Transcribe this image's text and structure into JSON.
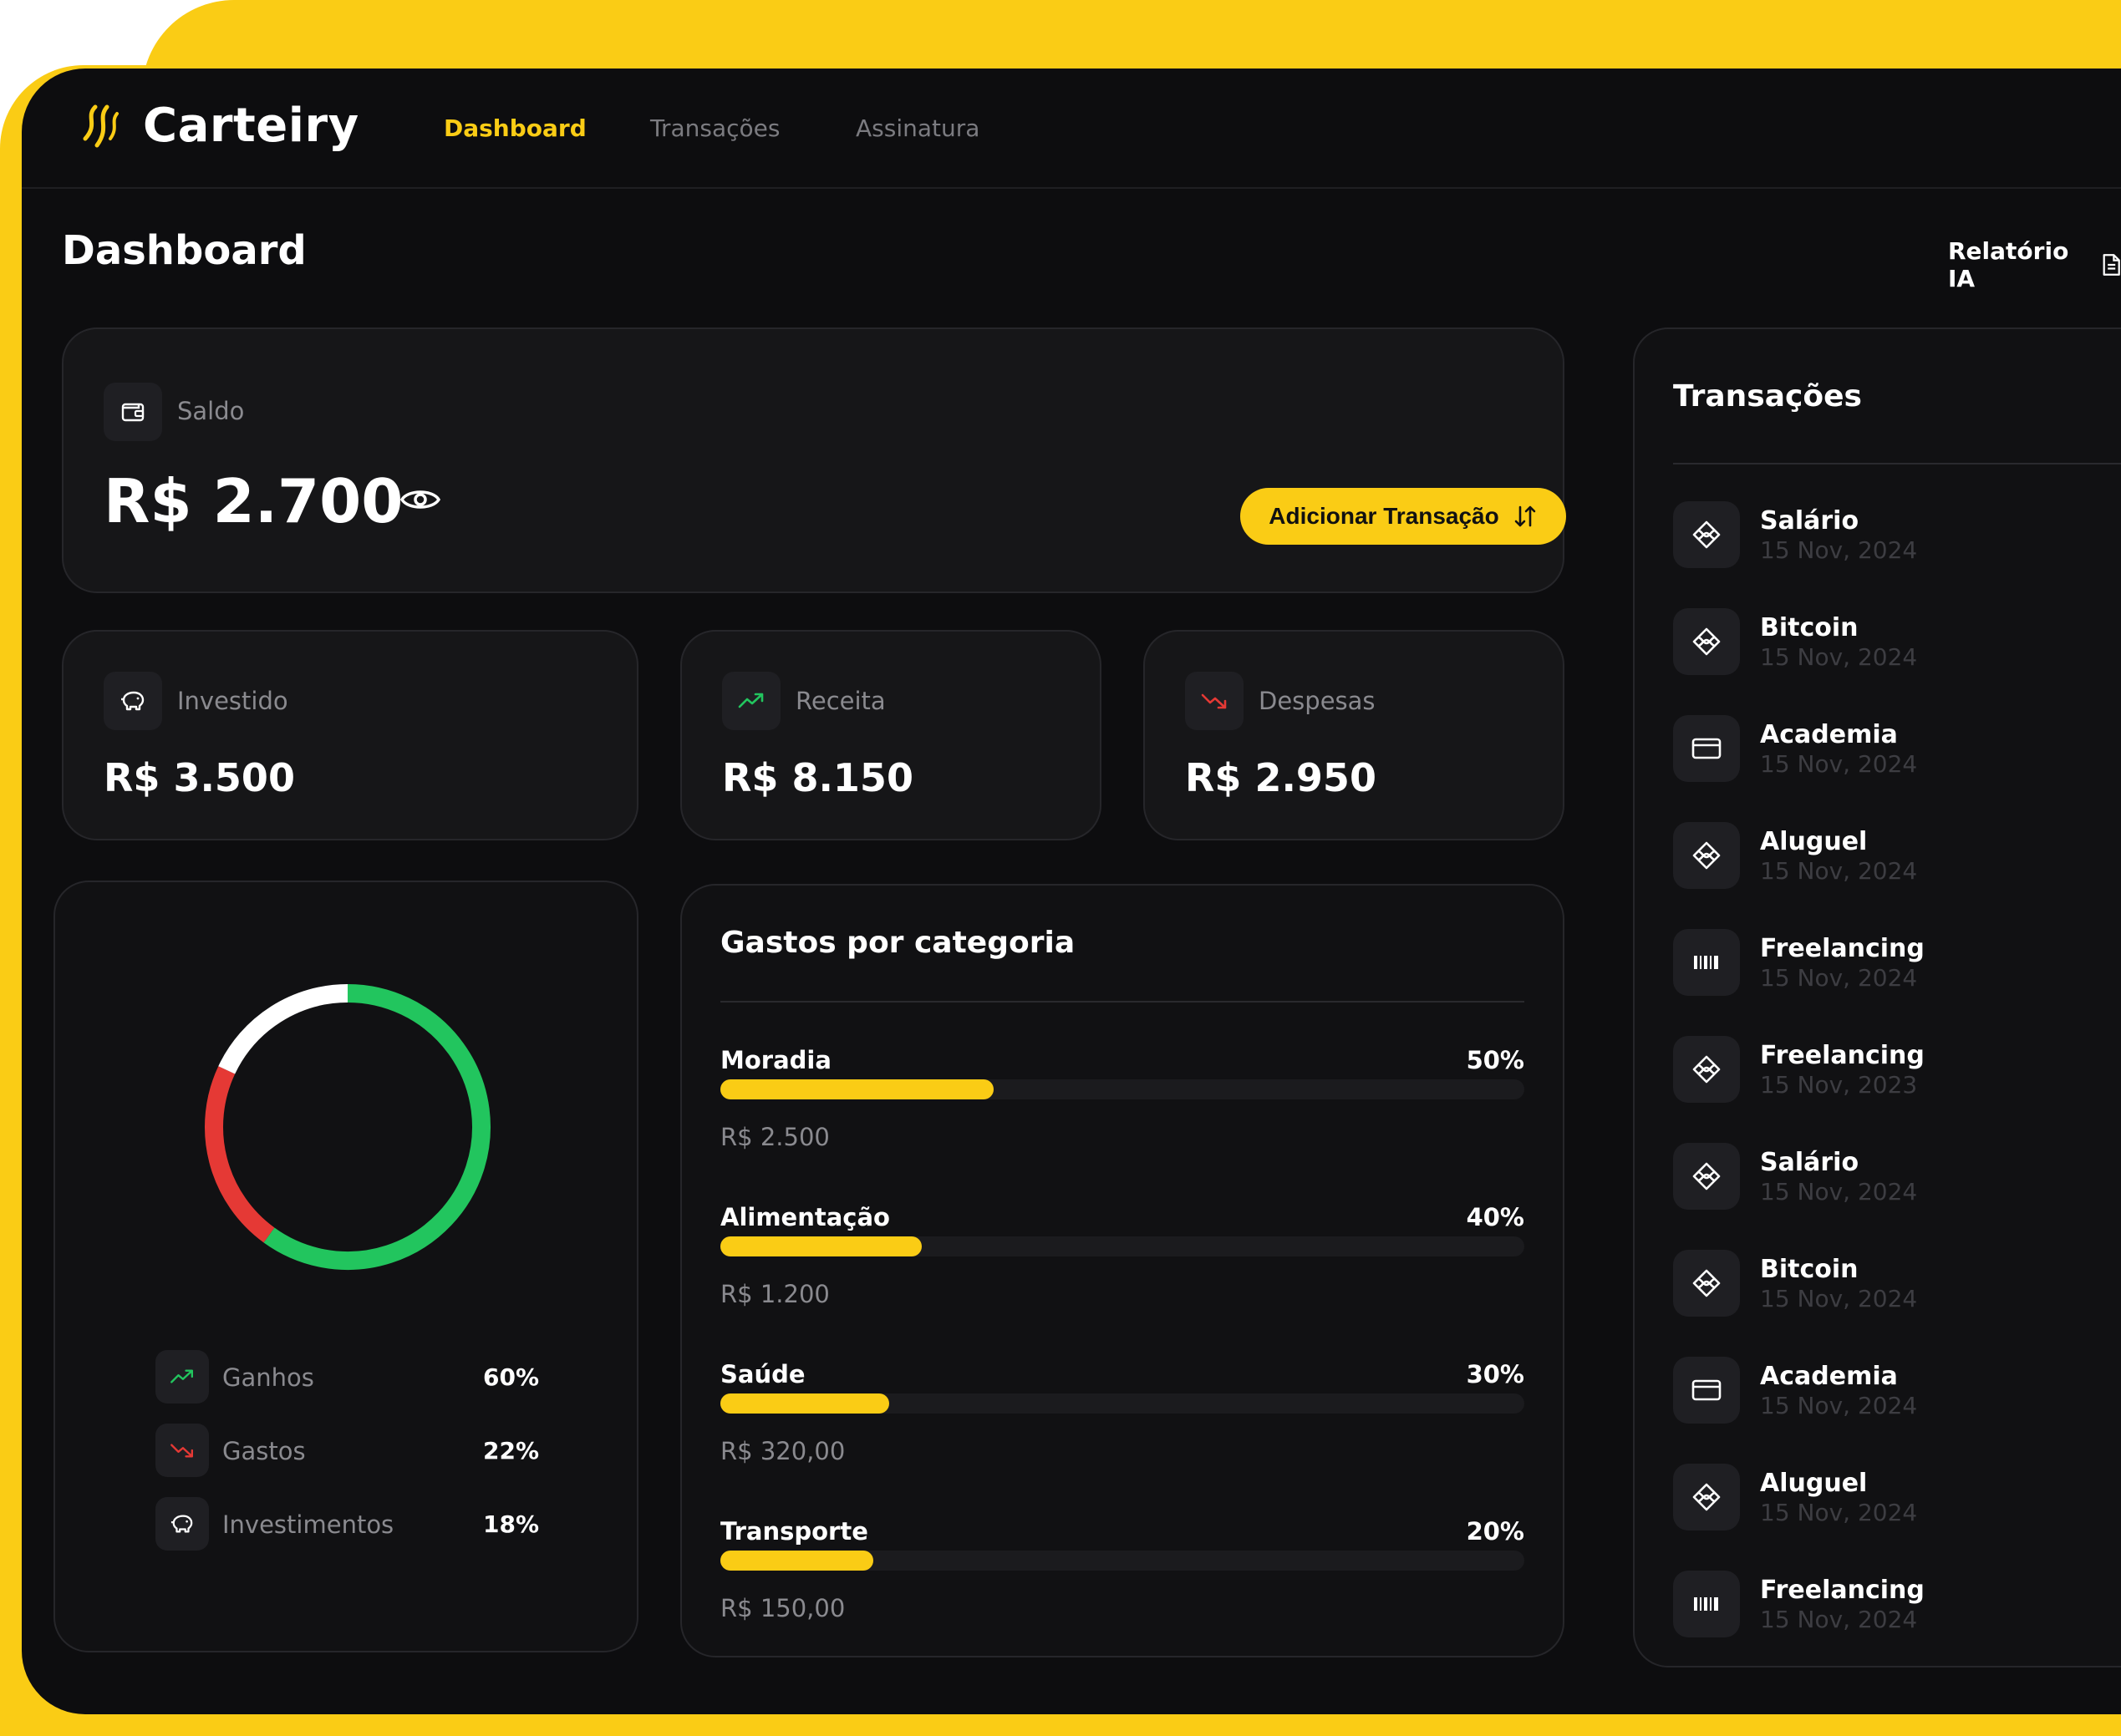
{
  "app": {
    "name": "Carteiry"
  },
  "nav": [
    {
      "label": "Dashboard",
      "active": true
    },
    {
      "label": "Transações",
      "active": false
    },
    {
      "label": "Assinatura",
      "active": false
    }
  ],
  "page": {
    "title": "Dashboard",
    "report_label": "Relatório IA"
  },
  "balance": {
    "label": "Saldo",
    "value": "R$ 2.700",
    "add_button": "Adicionar Transação"
  },
  "summary": [
    {
      "label": "Investido",
      "value": "R$ 3.500",
      "icon": "piggy-bank-icon"
    },
    {
      "label": "Receita",
      "value": "R$ 8.150",
      "icon": "trending-up-icon"
    },
    {
      "label": "Despesas",
      "value": "R$ 2.950",
      "icon": "trending-down-icon"
    }
  ],
  "chart_data": {
    "type": "pie",
    "categories": [
      "Ganhos",
      "Gastos",
      "Investimentos"
    ],
    "values": [
      60,
      22,
      18
    ],
    "colors": [
      "#22C55E",
      "#E53935",
      "#FFFFFF"
    ]
  },
  "legend": [
    {
      "label": "Ganhos",
      "pct": "60%",
      "icon": "trending-up-icon",
      "color": "#22C55E"
    },
    {
      "label": "Gastos",
      "pct": "22%",
      "icon": "trending-down-icon",
      "color": "#E53935"
    },
    {
      "label": "Investimentos",
      "pct": "18%",
      "icon": "piggy-bank-icon",
      "color": "#FFFFFF"
    }
  ],
  "categories": {
    "title": "Gastos por categoria",
    "items": [
      {
        "name": "Moradia",
        "pct": "50%",
        "value": "R$ 2.500",
        "fill": 0.34
      },
      {
        "name": "Alimentação",
        "pct": "40%",
        "value": "R$ 1.200",
        "fill": 0.25
      },
      {
        "name": "Saúde",
        "pct": "30%",
        "value": "R$ 320,00",
        "fill": 0.21
      },
      {
        "name": "Transporte",
        "pct": "20%",
        "value": "R$ 150,00",
        "fill": 0.19
      }
    ]
  },
  "transactions": {
    "title": "Transações",
    "items": [
      {
        "name": "Salário",
        "date": "15 Nov, 2024",
        "icon": "pix-icon"
      },
      {
        "name": "Bitcoin",
        "date": "15 Nov, 2024",
        "icon": "pix-icon"
      },
      {
        "name": "Academia",
        "date": "15 Nov, 2024",
        "icon": "credit-card-icon"
      },
      {
        "name": "Aluguel",
        "date": "15 Nov, 2024",
        "icon": "pix-icon"
      },
      {
        "name": "Freelancing",
        "date": "15 Nov, 2024",
        "icon": "barcode-icon"
      },
      {
        "name": "Freelancing",
        "date": "15 Nov, 2023",
        "icon": "pix-icon"
      },
      {
        "name": "Salário",
        "date": "15 Nov, 2024",
        "icon": "pix-icon"
      },
      {
        "name": "Bitcoin",
        "date": "15 Nov, 2024",
        "icon": "pix-icon"
      },
      {
        "name": "Academia",
        "date": "15 Nov, 2024",
        "icon": "credit-card-icon"
      },
      {
        "name": "Aluguel",
        "date": "15 Nov, 2024",
        "icon": "pix-icon"
      },
      {
        "name": "Freelancing",
        "date": "15 Nov, 2024",
        "icon": "barcode-icon"
      }
    ]
  }
}
